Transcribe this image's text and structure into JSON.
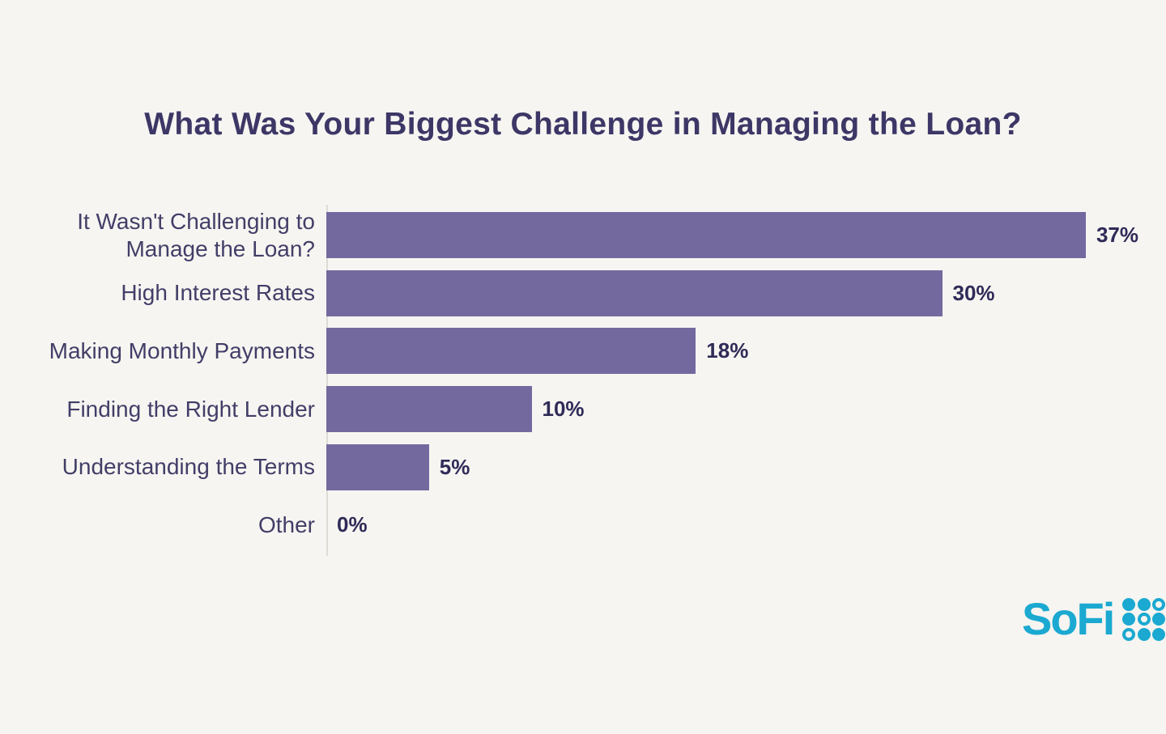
{
  "chart_data": {
    "type": "bar",
    "orientation": "horizontal",
    "title": "What Was Your Biggest Challenge in Managing the Loan?",
    "categories": [
      "It Wasn't Challenging to\nManage the Loan?",
      "High Interest Rates",
      "Making Monthly Payments",
      "Finding the Right Lender",
      "Understanding the Terms",
      "Other"
    ],
    "values": [
      37,
      30,
      18,
      10,
      5,
      0
    ],
    "value_labels": [
      "37%",
      "30%",
      "18%",
      "10%",
      "5%",
      "0%"
    ],
    "xlabel": "",
    "ylabel": "",
    "xlim": [
      0,
      40
    ],
    "grid": false,
    "legend": false,
    "bar_color": "#74699f",
    "label_color": "#423e68",
    "value_color": "#2f2b58",
    "axis_line_color": "#dedbd5",
    "background_color": "#f7f5f1"
  },
  "branding": {
    "logo_text": "SoFi",
    "logo_color": "#1ba9d1",
    "logo_grid_pattern": [
      "filled",
      "filled",
      "outline",
      "filled",
      "outline",
      "filled",
      "outline",
      "filled",
      "filled"
    ],
    "registered_mark": "®"
  }
}
